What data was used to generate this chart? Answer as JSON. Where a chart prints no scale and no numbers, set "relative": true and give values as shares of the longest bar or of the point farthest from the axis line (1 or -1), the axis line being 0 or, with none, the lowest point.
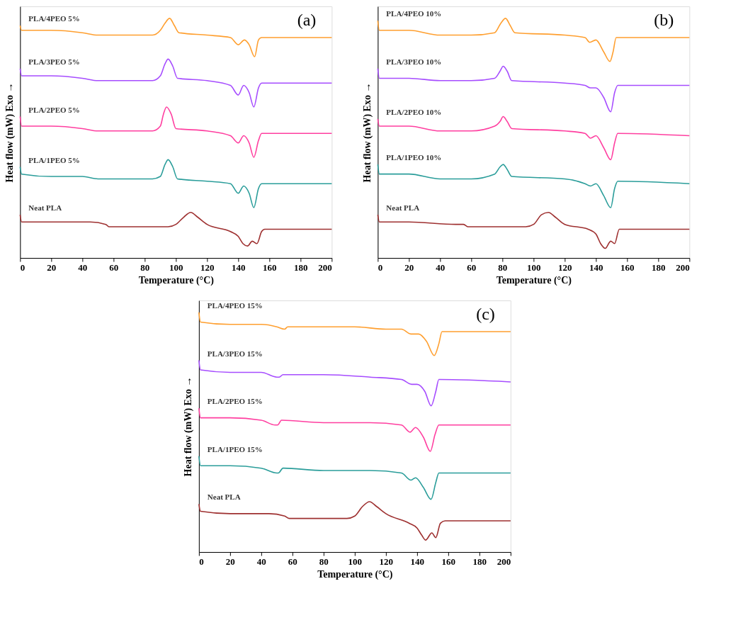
{
  "chart_data": [
    {
      "type": "line",
      "relative": true,
      "xlabel": "Temperature (°C)",
      "ylabel": "Heat flow (mW)  Exo →",
      "annotations": [
        "(a)"
      ],
      "xlim": [
        0,
        200
      ],
      "xticks": [
        0,
        20,
        40,
        60,
        80,
        100,
        120,
        140,
        160,
        180,
        200
      ],
      "grid": false,
      "tick_labels": "x",
      "series": [
        {
          "name": "PLA/4PEO 5%",
          "color": "#ff9f2f",
          "x": [
            0,
            1,
            20,
            40,
            50,
            85,
            90,
            93,
            96,
            99,
            102,
            120,
            135,
            140,
            144,
            147,
            150.5,
            153,
            155,
            200
          ],
          "values": [
            0.97,
            0.95,
            0.95,
            0.94,
            0.93,
            0.93,
            0.95,
            0.98,
            1.0,
            0.97,
            0.94,
            0.93,
            0.92,
            0.89,
            0.91,
            0.89,
            0.84,
            0.91,
            0.92,
            0.92
          ]
        },
        {
          "name": "PLA/3PEO 5%",
          "color": "#a64dff",
          "x": [
            0,
            1,
            20,
            40,
            50,
            85,
            90,
            93,
            95,
            98,
            101,
            120,
            135,
            140,
            143.5,
            147,
            150,
            153,
            155,
            200
          ],
          "values": [
            0.79,
            0.76,
            0.76,
            0.75,
            0.74,
            0.74,
            0.76,
            0.81,
            0.83,
            0.8,
            0.75,
            0.74,
            0.72,
            0.68,
            0.72,
            0.69,
            0.63,
            0.71,
            0.73,
            0.73
          ]
        },
        {
          "name": "PLA/2PEO 5%",
          "color": "#ff3fa0",
          "x": [
            0,
            1,
            20,
            40,
            50,
            85,
            90,
            92,
            94,
            97,
            100,
            120,
            135,
            140,
            143.5,
            147,
            150,
            153,
            155,
            200
          ],
          "values": [
            0.59,
            0.55,
            0.55,
            0.54,
            0.53,
            0.53,
            0.55,
            0.6,
            0.63,
            0.6,
            0.54,
            0.53,
            0.51,
            0.48,
            0.51,
            0.48,
            0.42,
            0.49,
            0.52,
            0.52
          ]
        },
        {
          "name": "PLA/1PEO 5%",
          "color": "#2a9d9a",
          "x": [
            0,
            1,
            20,
            40,
            50,
            85,
            90,
            93,
            95,
            98,
            101,
            120,
            135,
            140,
            143.5,
            147,
            150,
            153,
            155,
            200
          ],
          "values": [
            0.38,
            0.35,
            0.34,
            0.34,
            0.33,
            0.33,
            0.34,
            0.39,
            0.41,
            0.38,
            0.33,
            0.32,
            0.31,
            0.27,
            0.3,
            0.27,
            0.21,
            0.29,
            0.31,
            0.31
          ]
        },
        {
          "name": "Neat PLA",
          "color": "#9e3030",
          "x": [
            0,
            1,
            20,
            45,
            55,
            57,
            60,
            95,
            100,
            105,
            109.5,
            114,
            120,
            135,
            140,
            143,
            146,
            149,
            152,
            155,
            157,
            200
          ],
          "values": [
            0.18,
            0.15,
            0.15,
            0.15,
            0.14,
            0.13,
            0.13,
            0.13,
            0.14,
            0.17,
            0.19,
            0.17,
            0.14,
            0.11,
            0.09,
            0.06,
            0.05,
            0.07,
            0.06,
            0.11,
            0.12,
            0.12
          ]
        }
      ]
    },
    {
      "type": "line",
      "relative": true,
      "xlabel": "Temperature (°C)",
      "ylabel": "Heat flow (mW)  Exo →",
      "annotations": [
        "(b)"
      ],
      "xlim": [
        0,
        200
      ],
      "xticks": [
        0,
        20,
        40,
        60,
        80,
        100,
        120,
        140,
        160,
        180,
        200
      ],
      "grid": false,
      "tick_labels": "x",
      "series": [
        {
          "name": "PLA/4PEO 10%",
          "color": "#ff9f2f",
          "x": [
            0,
            1,
            20,
            40,
            60,
            75,
            79,
            82,
            85,
            88,
            120,
            133,
            136,
            140,
            145,
            149,
            151,
            153,
            155,
            200
          ],
          "values": [
            0.99,
            0.95,
            0.95,
            0.93,
            0.93,
            0.94,
            0.98,
            1.0,
            0.97,
            0.94,
            0.93,
            0.92,
            0.9,
            0.91,
            0.86,
            0.82,
            0.86,
            0.92,
            0.92,
            0.92
          ]
        },
        {
          "name": "PLA/3PEO 10%",
          "color": "#a64dff",
          "x": [
            0,
            1,
            20,
            40,
            60,
            75,
            78.5,
            80.5,
            83,
            86,
            120,
            133,
            136.5,
            140,
            145,
            149.5,
            152,
            154,
            200
          ],
          "values": [
            0.79,
            0.75,
            0.75,
            0.74,
            0.74,
            0.75,
            0.78,
            0.8,
            0.78,
            0.74,
            0.73,
            0.72,
            0.71,
            0.71,
            0.67,
            0.61,
            0.69,
            0.72,
            0.72
          ]
        },
        {
          "name": "PLA/2PEO 10%",
          "color": "#ff3fa0",
          "x": [
            0,
            1,
            20,
            40,
            60,
            75,
            78.5,
            80.5,
            83,
            86,
            120,
            133,
            136.5,
            140,
            145,
            149.5,
            152,
            154,
            200
          ],
          "values": [
            0.58,
            0.55,
            0.55,
            0.53,
            0.53,
            0.55,
            0.57,
            0.59,
            0.57,
            0.54,
            0.53,
            0.52,
            0.5,
            0.51,
            0.46,
            0.41,
            0.48,
            0.52,
            0.51
          ]
        },
        {
          "name": "PLA/1PEO 10%",
          "color": "#2a9d9a",
          "x": [
            0,
            1,
            20,
            40,
            60,
            75,
            78.5,
            80.5,
            83,
            86,
            120,
            133,
            136.5,
            140,
            145,
            149.5,
            152,
            154,
            200
          ],
          "values": [
            0.39,
            0.35,
            0.35,
            0.33,
            0.33,
            0.35,
            0.38,
            0.39,
            0.37,
            0.34,
            0.33,
            0.31,
            0.3,
            0.31,
            0.26,
            0.21,
            0.29,
            0.32,
            0.31
          ]
        },
        {
          "name": "Neat PLA",
          "color": "#9e3030",
          "x": [
            0,
            1,
            20,
            50,
            55,
            58,
            62,
            95,
            100,
            105,
            109.5,
            114,
            120,
            135,
            140,
            143,
            146,
            149.5,
            152,
            155,
            158,
            200
          ],
          "values": [
            0.18,
            0.15,
            0.15,
            0.14,
            0.14,
            0.13,
            0.13,
            0.13,
            0.14,
            0.18,
            0.19,
            0.17,
            0.14,
            0.12,
            0.1,
            0.06,
            0.04,
            0.07,
            0.06,
            0.12,
            0.12,
            0.12
          ]
        }
      ]
    },
    {
      "type": "line",
      "relative": true,
      "xlabel": "Temperature (°C)",
      "ylabel": "Heat flow (mW)  Exo →",
      "annotations": [
        "(c)"
      ],
      "xlim": [
        0,
        200
      ],
      "xticks": [
        0,
        20,
        40,
        60,
        80,
        100,
        120,
        140,
        160,
        180,
        200
      ],
      "grid": false,
      "tick_labels": "x",
      "series": [
        {
          "name": "PLA/4PEO 15%",
          "color": "#ff9f2f",
          "x": [
            0,
            1,
            20,
            40,
            50,
            55,
            57,
            75,
            100,
            120,
            130,
            136,
            141,
            146,
            151,
            154,
            156,
            200
          ],
          "values": [
            1.0,
            0.96,
            0.95,
            0.95,
            0.94,
            0.93,
            0.94,
            0.94,
            0.94,
            0.93,
            0.93,
            0.91,
            0.91,
            0.88,
            0.82,
            0.87,
            0.92,
            0.92
          ]
        },
        {
          "name": "PLA/3PEO 15%",
          "color": "#a64dff",
          "x": [
            0,
            1,
            20,
            40,
            50,
            51.5,
            54,
            80,
            110,
            130,
            136.5,
            140,
            145,
            149,
            152,
            154,
            200
          ],
          "values": [
            0.8,
            0.76,
            0.75,
            0.75,
            0.73,
            0.73,
            0.74,
            0.74,
            0.73,
            0.72,
            0.7,
            0.7,
            0.67,
            0.61,
            0.67,
            0.72,
            0.71
          ]
        },
        {
          "name": "PLA/2PEO 15%",
          "color": "#ff3fa0",
          "x": [
            0,
            1,
            20,
            40,
            49,
            50.5,
            53,
            80,
            110,
            130,
            135.5,
            139,
            144,
            148.5,
            151.5,
            154,
            200
          ],
          "values": [
            0.6,
            0.56,
            0.56,
            0.55,
            0.53,
            0.53,
            0.55,
            0.54,
            0.54,
            0.53,
            0.5,
            0.52,
            0.48,
            0.42,
            0.49,
            0.53,
            0.53
          ]
        },
        {
          "name": "PLA/1PEO 15%",
          "color": "#2a9d9a",
          "x": [
            0,
            1,
            20,
            40,
            50,
            51,
            54,
            80,
            110,
            130,
            136,
            139,
            144,
            149,
            152,
            154,
            200
          ],
          "values": [
            0.4,
            0.36,
            0.36,
            0.35,
            0.33,
            0.33,
            0.35,
            0.34,
            0.34,
            0.33,
            0.3,
            0.31,
            0.27,
            0.22,
            0.29,
            0.33,
            0.33
          ]
        },
        {
          "name": "Neat PLA",
          "color": "#9e3030",
          "x": [
            0,
            1,
            20,
            45,
            55,
            58,
            62,
            95,
            100,
            105,
            109.5,
            114,
            120,
            135,
            140,
            143,
            145.5,
            149.5,
            152,
            155,
            158,
            200
          ],
          "values": [
            0.2,
            0.17,
            0.16,
            0.16,
            0.15,
            0.14,
            0.14,
            0.14,
            0.15,
            0.19,
            0.21,
            0.19,
            0.16,
            0.12,
            0.1,
            0.07,
            0.05,
            0.08,
            0.06,
            0.12,
            0.13,
            0.13
          ]
        }
      ]
    }
  ]
}
